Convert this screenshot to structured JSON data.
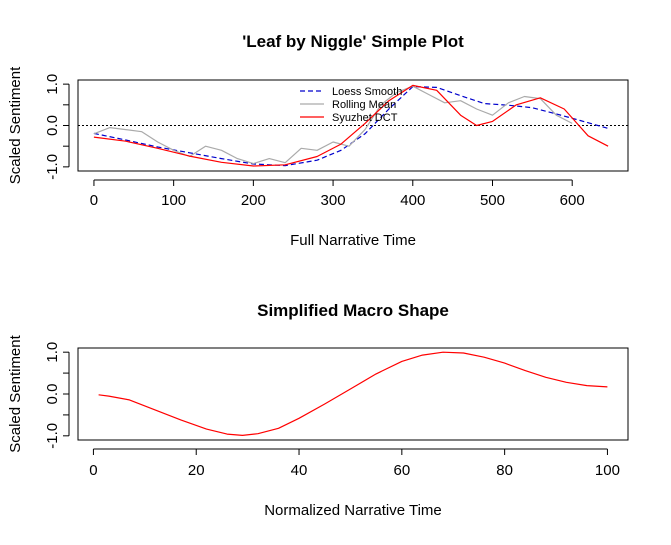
{
  "chart_data": [
    {
      "type": "line",
      "title": "'Leaf by Niggle' Simple Plot",
      "xlabel": "Full Narrative Time",
      "ylabel": "Scaled Sentiment",
      "xlim": [
        -20,
        670
      ],
      "ylim": [
        -1.1,
        1.1
      ],
      "x_ticks": [
        0,
        100,
        200,
        300,
        400,
        500,
        600
      ],
      "x_tick_labels": [
        "0",
        "100",
        "200",
        "300",
        "400",
        "500",
        "600"
      ],
      "y_ticks": [
        -1,
        0,
        1
      ],
      "y_tick_labels": [
        "-1.0",
        "0.0",
        "1.0"
      ],
      "reference_line_y": 0,
      "grid": false,
      "legend_position": "top-center",
      "series": [
        {
          "name": "Loess Smooth",
          "color": "#0000cc",
          "dash": "dashed",
          "x": [
            0,
            40,
            80,
            120,
            160,
            200,
            240,
            280,
            310,
            340,
            370,
            400,
            430,
            460,
            490,
            520,
            550,
            580,
            610,
            645
          ],
          "y": [
            -0.19,
            -0.35,
            -0.52,
            -0.66,
            -0.8,
            -0.93,
            -0.97,
            -0.84,
            -0.6,
            -0.2,
            0.4,
            0.94,
            0.92,
            0.72,
            0.53,
            0.49,
            0.43,
            0.28,
            0.12,
            -0.07
          ]
        },
        {
          "name": "Rolling Mean",
          "color": "#aaaaaa",
          "dash": "solid",
          "x": [
            0,
            20,
            40,
            60,
            80,
            100,
            120,
            140,
            160,
            180,
            200,
            220,
            240,
            260,
            280,
            300,
            320,
            340,
            360,
            380,
            400,
            420,
            440,
            460,
            480,
            500,
            520,
            540,
            560,
            580,
            600
          ],
          "y": [
            -0.2,
            -0.05,
            -0.1,
            -0.15,
            -0.4,
            -0.6,
            -0.75,
            -0.5,
            -0.6,
            -0.8,
            -0.92,
            -0.8,
            -0.9,
            -0.55,
            -0.6,
            -0.4,
            -0.5,
            -0.1,
            0.5,
            0.8,
            0.95,
            0.75,
            0.55,
            0.6,
            0.4,
            0.25,
            0.55,
            0.7,
            0.65,
            0.25,
            0.05
          ]
        },
        {
          "name": "Syuzhet DCT",
          "color": "#ff0000",
          "dash": "solid",
          "x": [
            0,
            40,
            80,
            120,
            160,
            200,
            240,
            280,
            310,
            340,
            370,
            400,
            430,
            460,
            480,
            500,
            530,
            560,
            590,
            620,
            645
          ],
          "y": [
            -0.28,
            -0.38,
            -0.55,
            -0.74,
            -0.89,
            -0.98,
            -0.95,
            -0.75,
            -0.45,
            0.05,
            0.6,
            0.97,
            0.85,
            0.25,
            0.0,
            0.1,
            0.5,
            0.67,
            0.4,
            -0.25,
            -0.5
          ]
        }
      ]
    },
    {
      "type": "line",
      "title": "Simplified Macro Shape",
      "xlabel": "Normalized Narrative Time",
      "ylabel": "Scaled Sentiment",
      "xlim": [
        -3,
        104
      ],
      "ylim": [
        -1.1,
        1.1
      ],
      "x_ticks": [
        0,
        20,
        40,
        60,
        80,
        100
      ],
      "x_tick_labels": [
        "0",
        "20",
        "40",
        "60",
        "80",
        "100"
      ],
      "y_ticks": [
        -1,
        0,
        1
      ],
      "y_tick_labels": [
        "-1.0",
        "0.0",
        "1.0"
      ],
      "grid": false,
      "series": [
        {
          "color": "#ff0000",
          "dash": "solid",
          "x": [
            1,
            3,
            7,
            12,
            17,
            22,
            26,
            29,
            32,
            36,
            40,
            45,
            50,
            55,
            60,
            64,
            68,
            72,
            76,
            80,
            84,
            88,
            92,
            96,
            100
          ],
          "y": [
            -0.02,
            -0.05,
            -0.14,
            -0.38,
            -0.62,
            -0.84,
            -0.96,
            -0.99,
            -0.95,
            -0.82,
            -0.58,
            -0.24,
            0.12,
            0.48,
            0.78,
            0.93,
            1.0,
            0.98,
            0.88,
            0.74,
            0.56,
            0.4,
            0.28,
            0.2,
            0.17
          ]
        }
      ]
    }
  ]
}
